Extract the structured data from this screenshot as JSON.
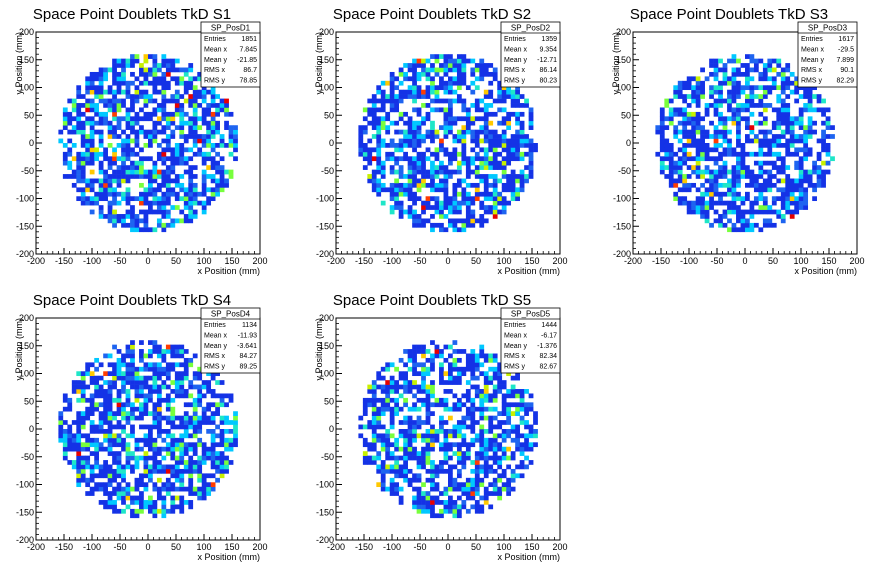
{
  "chart_data": [
    {
      "type": "heatmap",
      "title": "Space Point Doublets TkD S1",
      "xlabel": "x Position (mm)",
      "ylabel": "y Position (mm)",
      "xlim": [
        -200,
        200
      ],
      "ylim": [
        -200,
        200
      ],
      "xticks": [
        "-200",
        "-150",
        "-100",
        "-50",
        "0",
        "50",
        "100",
        "150",
        "200"
      ],
      "yticks": [
        "-200",
        "-150",
        "-100",
        "-50",
        "0",
        "50",
        "100",
        "150",
        "200"
      ],
      "stats": {
        "name": "SP_PosD1",
        "rows": [
          {
            "label": "Entries",
            "value": "1851"
          },
          {
            "label": "Mean x",
            "value": "7.845"
          },
          {
            "label": "Mean y",
            "value": "-21.85"
          },
          {
            "label": "RMS x",
            "value": "86.7"
          },
          {
            "label": "RMS y",
            "value": "78.85"
          }
        ]
      },
      "fill_radius_mm": 160,
      "bin_size_mm": 8,
      "seed": 11
    },
    {
      "type": "heatmap",
      "title": "Space Point Doublets TkD S2",
      "xlabel": "x Position (mm)",
      "ylabel": "y Position (mm)",
      "xlim": [
        -200,
        200
      ],
      "ylim": [
        -200,
        200
      ],
      "xticks": [
        "-200",
        "-150",
        "-100",
        "-50",
        "0",
        "50",
        "100",
        "150",
        "200"
      ],
      "yticks": [
        "-200",
        "-150",
        "-100",
        "-50",
        "0",
        "50",
        "100",
        "150",
        "200"
      ],
      "stats": {
        "name": "SP_PosD2",
        "rows": [
          {
            "label": "Entries",
            "value": "1359"
          },
          {
            "label": "Mean x",
            "value": "9.354"
          },
          {
            "label": "Mean y",
            "value": "-12.71"
          },
          {
            "label": "RMS x",
            "value": "86.14"
          },
          {
            "label": "RMS y",
            "value": "80.23"
          }
        ]
      },
      "fill_radius_mm": 160,
      "bin_size_mm": 8,
      "seed": 23
    },
    {
      "type": "heatmap",
      "title": "Space Point Doublets TkD S3",
      "xlabel": "x Position (mm)",
      "ylabel": "y Position (mm)",
      "xlim": [
        -200,
        200
      ],
      "ylim": [
        -200,
        200
      ],
      "xticks": [
        "-200",
        "-150",
        "-100",
        "-50",
        "0",
        "50",
        "100",
        "150",
        "200"
      ],
      "yticks": [
        "-200",
        "-150",
        "-100",
        "-50",
        "0",
        "50",
        "100",
        "150",
        "200"
      ],
      "stats": {
        "name": "SP_PosD3",
        "rows": [
          {
            "label": "Entries",
            "value": "1617"
          },
          {
            "label": "Mean x",
            "value": "-29.5"
          },
          {
            "label": "Mean y",
            "value": "7.899"
          },
          {
            "label": "RMS x",
            "value": "90.1"
          },
          {
            "label": "RMS y",
            "value": "82.29"
          }
        ]
      },
      "fill_radius_mm": 160,
      "bin_size_mm": 8,
      "seed": 37
    },
    {
      "type": "heatmap",
      "title": "Space Point Doublets TkD S4",
      "xlabel": "x Position (mm)",
      "ylabel": "y Position (mm)",
      "xlim": [
        -200,
        200
      ],
      "ylim": [
        -200,
        200
      ],
      "xticks": [
        "-200",
        "-150",
        "-100",
        "-50",
        "0",
        "50",
        "100",
        "150",
        "200"
      ],
      "yticks": [
        "-200",
        "-150",
        "-100",
        "-50",
        "0",
        "50",
        "100",
        "150",
        "200"
      ],
      "stats": {
        "name": "SP_PosD4",
        "rows": [
          {
            "label": "Entries",
            "value": "1134"
          },
          {
            "label": "Mean x",
            "value": "-11.93"
          },
          {
            "label": "Mean y",
            "value": "-3.641"
          },
          {
            "label": "RMS x",
            "value": "84.27"
          },
          {
            "label": "RMS y",
            "value": "89.25"
          }
        ]
      },
      "fill_radius_mm": 160,
      "bin_size_mm": 8,
      "seed": 51
    },
    {
      "type": "heatmap",
      "title": "Space Point Doublets TkD S5",
      "xlabel": "x Position (mm)",
      "ylabel": "y Position (mm)",
      "xlim": [
        -200,
        200
      ],
      "ylim": [
        -200,
        200
      ],
      "xticks": [
        "-200",
        "-150",
        "-100",
        "-50",
        "0",
        "50",
        "100",
        "150",
        "200"
      ],
      "yticks": [
        "-200",
        "-150",
        "-100",
        "-50",
        "0",
        "50",
        "100",
        "150",
        "200"
      ],
      "stats": {
        "name": "SP_PosD5",
        "rows": [
          {
            "label": "Entries",
            "value": "1444"
          },
          {
            "label": "Mean x",
            "value": "-6.17"
          },
          {
            "label": "Mean y",
            "value": "-1.376"
          },
          {
            "label": "RMS x",
            "value": "82.34"
          },
          {
            "label": "RMS y",
            "value": "82.67"
          }
        ]
      },
      "fill_radius_mm": 160,
      "bin_size_mm": 8,
      "seed": 67
    }
  ],
  "colors": {
    "palette": [
      "#1432e6",
      "#1e64f0",
      "#00c8ff",
      "#1ee6c8",
      "#78ff3c",
      "#c8f000",
      "#ffc800",
      "#ff3c00",
      "#e60000"
    ],
    "axis": "#000000",
    "frame": "#000000",
    "background": "#ffffff"
  }
}
